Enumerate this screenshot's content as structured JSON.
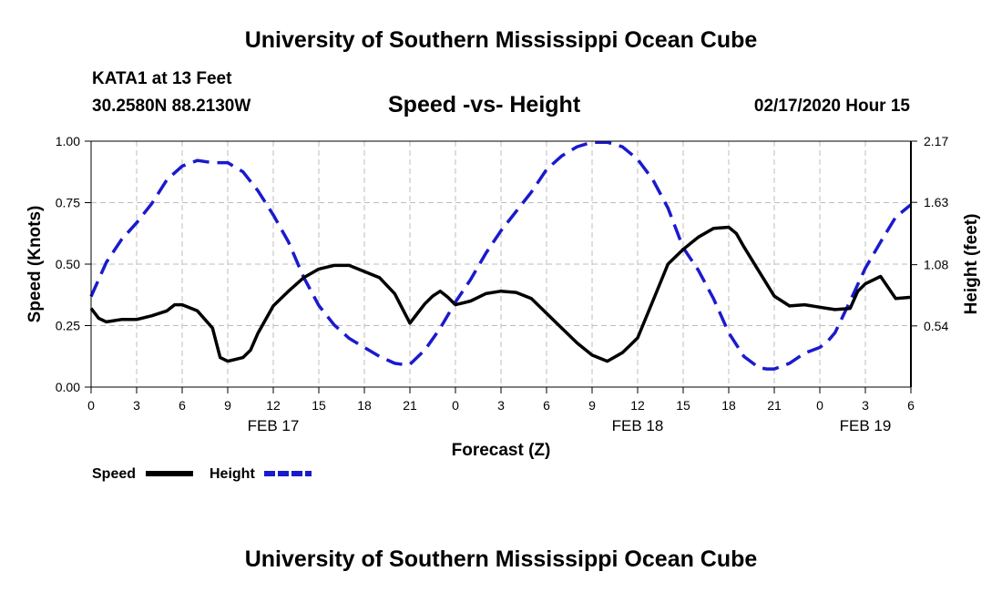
{
  "header": {
    "title": "University of Southern Mississippi Ocean Cube",
    "station": "KATA1 at 13 Feet",
    "location": "30.2580N 88.2130W",
    "chart_title": "Speed -vs- Height",
    "datetime": "02/17/2020 Hour 15"
  },
  "footer": {
    "title": "University of Southern Mississippi Ocean Cube"
  },
  "legend": {
    "speed_label": "Speed",
    "height_label": "Height"
  },
  "colors": {
    "speed": "#000000",
    "height": "#1a1acd",
    "grid": "#bdbdbd"
  },
  "chart_data": {
    "type": "line",
    "title": "Speed -vs- Height",
    "xlabel": "Forecast (Z)",
    "ylabel": "Speed (Knots)",
    "y2label": "Height (feet)",
    "xlim": [
      0,
      54
    ],
    "ylim": [
      0,
      1
    ],
    "y2lim": [
      0,
      2.17
    ],
    "grid": true,
    "legend": "bottom-left",
    "x_ticks": [
      0,
      3,
      6,
      9,
      12,
      15,
      18,
      21,
      24,
      27,
      30,
      33,
      36,
      39,
      42,
      45,
      48,
      51,
      54
    ],
    "x_tick_labels": [
      "0",
      "3",
      "6",
      "9",
      "12",
      "15",
      "18",
      "21",
      "0",
      "3",
      "6",
      "9",
      "12",
      "15",
      "18",
      "21",
      "0",
      "3",
      "6"
    ],
    "date_labels": [
      {
        "x": 12,
        "label": "FEB 17"
      },
      {
        "x": 36,
        "label": "FEB 18"
      },
      {
        "x": 51,
        "label": "FEB 19"
      }
    ],
    "y_ticks": [
      0,
      0.25,
      0.5,
      0.75,
      1
    ],
    "y_tick_labels": [
      "0.00",
      "0.25",
      "0.50",
      "0.75",
      "1.00"
    ],
    "y2_ticks": [
      0.54,
      1.08,
      1.63,
      2.17
    ],
    "y2_tick_labels": [
      "0.54",
      "1.08",
      "1.63",
      "2.17"
    ],
    "series": [
      {
        "name": "Speed",
        "axis": "left",
        "style": "solid",
        "x": [
          0,
          0.5,
          1,
          1.5,
          2,
          3,
          4,
          5,
          5.5,
          6,
          7,
          8,
          8.5,
          9,
          10,
          10.5,
          11,
          12,
          13,
          14,
          15,
          16,
          17,
          18,
          19,
          20,
          21,
          21.5,
          22,
          22.5,
          23,
          23.5,
          24,
          25,
          26,
          27,
          28,
          29,
          30,
          31,
          32,
          33,
          34,
          35,
          35.5,
          36,
          37,
          38,
          39,
          40,
          41,
          42,
          42.5,
          43,
          44,
          45,
          46,
          47,
          48,
          48.5,
          49,
          50,
          50.5,
          51,
          52,
          53,
          54
        ],
        "values": [
          0.32,
          0.28,
          0.265,
          0.27,
          0.275,
          0.275,
          0.29,
          0.31,
          0.335,
          0.335,
          0.31,
          0.24,
          0.12,
          0.105,
          0.12,
          0.15,
          0.22,
          0.33,
          0.39,
          0.445,
          0.48,
          0.495,
          0.495,
          0.47,
          0.445,
          0.38,
          0.26,
          0.3,
          0.34,
          0.37,
          0.39,
          0.365,
          0.335,
          0.35,
          0.38,
          0.39,
          0.385,
          0.36,
          0.3,
          0.24,
          0.18,
          0.13,
          0.105,
          0.14,
          0.17,
          0.2,
          0.35,
          0.5,
          0.56,
          0.61,
          0.645,
          0.65,
          0.625,
          0.57,
          0.47,
          0.37,
          0.33,
          0.335,
          0.325,
          0.32,
          0.315,
          0.32,
          0.39,
          0.42,
          0.45,
          0.36,
          0.365
        ]
      },
      {
        "name": "Height",
        "axis": "right",
        "style": "dashed",
        "x": [
          0,
          1,
          2,
          3,
          4,
          5,
          6,
          7,
          8,
          9,
          10,
          11,
          12,
          13,
          14,
          15,
          16,
          17,
          18,
          19,
          20,
          20.5,
          21,
          22,
          23,
          24,
          25,
          26,
          27,
          28,
          29,
          30,
          31,
          32,
          33,
          34,
          35,
          36,
          37,
          38,
          39,
          40,
          41,
          42,
          43,
          44,
          44.5,
          45,
          46,
          47,
          48,
          48.5,
          49,
          50,
          51,
          52,
          53,
          54
        ],
        "values": [
          0.8,
          1.1,
          1.3,
          1.45,
          1.62,
          1.83,
          1.95,
          2.0,
          1.98,
          1.98,
          1.9,
          1.73,
          1.52,
          1.28,
          0.97,
          0.72,
          0.55,
          0.43,
          0.35,
          0.27,
          0.21,
          0.2,
          0.2,
          0.33,
          0.52,
          0.75,
          0.95,
          1.18,
          1.38,
          1.55,
          1.72,
          1.92,
          2.04,
          2.12,
          2.16,
          2.16,
          2.12,
          2.01,
          1.83,
          1.58,
          1.23,
          1.03,
          0.78,
          0.48,
          0.27,
          0.17,
          0.16,
          0.16,
          0.21,
          0.3,
          0.35,
          0.4,
          0.48,
          0.76,
          1.05,
          1.28,
          1.5,
          1.61
        ]
      }
    ]
  }
}
